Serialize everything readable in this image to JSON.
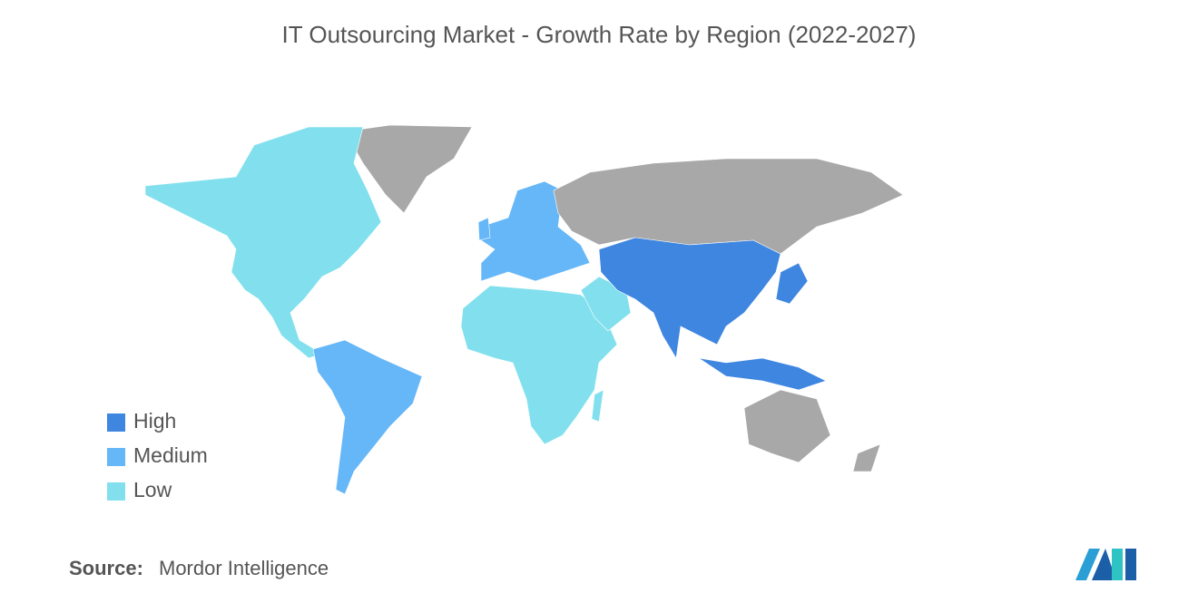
{
  "title": "IT Outsourcing Market - Growth Rate by Region (2022-2027)",
  "legend": [
    {
      "label": "High",
      "color": "#3f86e0"
    },
    {
      "label": "Medium",
      "color": "#66b7f8"
    },
    {
      "label": "Low",
      "color": "#82e0ee"
    }
  ],
  "source": {
    "label": "Source:",
    "text": "Mordor Intelligence"
  }
}
